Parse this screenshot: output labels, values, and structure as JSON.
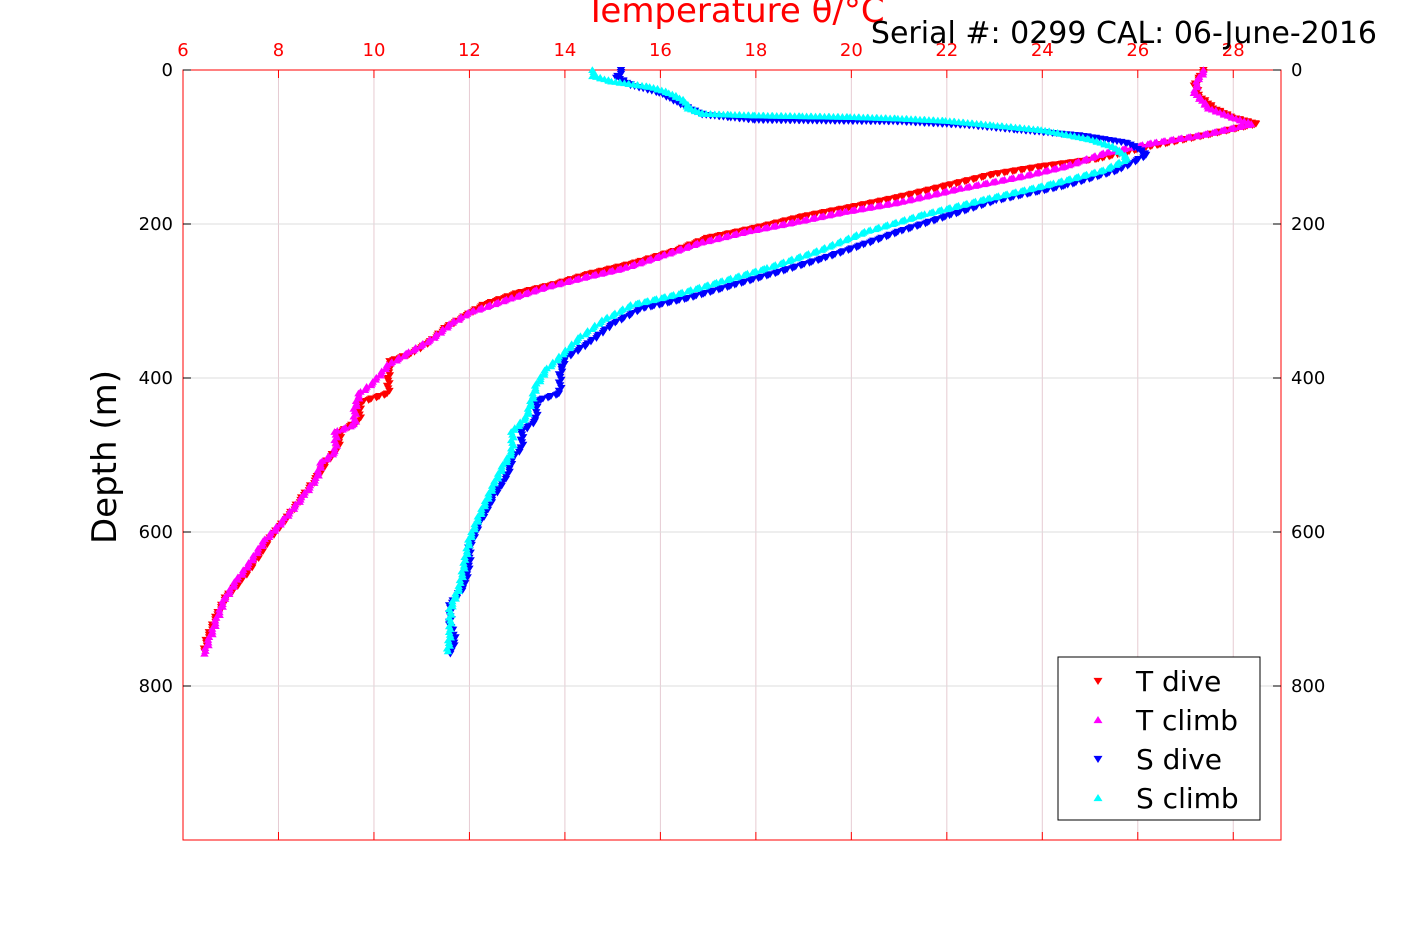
{
  "chart_data": {
    "type": "scatter",
    "title": "Temperature θ/°C",
    "subtitle": "Serial #: 0299 CAL: 06-June-2016",
    "xlabel": "Temperature θ/°C",
    "ylabel": "Depth (m)",
    "xlim": [
      6,
      29
    ],
    "ylim": [
      0,
      1000
    ],
    "y_reversed": true,
    "x_ticks": [
      6,
      8,
      10,
      12,
      14,
      16,
      18,
      20,
      22,
      24,
      26,
      28
    ],
    "y_ticks": [
      0,
      200,
      400,
      600,
      800
    ],
    "grid": true,
    "legend_position": "bottom-right",
    "series": [
      {
        "name": "T dive",
        "color": "#ff0000",
        "marker": "triangle-down",
        "points": [
          [
            27.4,
            0
          ],
          [
            27.3,
            10
          ],
          [
            27.2,
            20
          ],
          [
            27.3,
            35
          ],
          [
            27.6,
            50
          ],
          [
            28.0,
            62
          ],
          [
            28.5,
            70
          ],
          [
            27.4,
            85
          ],
          [
            26.2,
            100
          ],
          [
            25.2,
            115
          ],
          [
            24.0,
            125
          ],
          [
            23.0,
            135
          ],
          [
            22.0,
            150
          ],
          [
            21.0,
            165
          ],
          [
            20.0,
            178
          ],
          [
            19.0,
            190
          ],
          [
            18.0,
            205
          ],
          [
            17.0,
            218
          ],
          [
            16.3,
            235
          ],
          [
            15.5,
            250
          ],
          [
            14.5,
            265
          ],
          [
            13.8,
            278
          ],
          [
            13.0,
            290
          ],
          [
            12.3,
            305
          ],
          [
            11.9,
            320
          ],
          [
            11.5,
            335
          ],
          [
            11.2,
            352
          ],
          [
            10.8,
            368
          ],
          [
            10.35,
            378
          ],
          [
            10.3,
            400
          ],
          [
            10.3,
            420
          ],
          [
            9.7,
            432
          ],
          [
            9.7,
            455
          ],
          [
            9.3,
            470
          ],
          [
            9.25,
            490
          ],
          [
            9.0,
            510
          ],
          [
            8.8,
            530
          ],
          [
            8.5,
            555
          ],
          [
            8.2,
            580
          ],
          [
            7.8,
            610
          ],
          [
            7.5,
            640
          ],
          [
            7.2,
            665
          ],
          [
            6.9,
            685
          ],
          [
            6.7,
            710
          ],
          [
            6.5,
            740
          ],
          [
            6.45,
            755
          ]
        ]
      },
      {
        "name": "T climb",
        "color": "#ff00ff",
        "marker": "triangle-up",
        "points": [
          [
            27.4,
            0
          ],
          [
            27.25,
            15
          ],
          [
            27.2,
            30
          ],
          [
            27.5,
            50
          ],
          [
            28.0,
            62
          ],
          [
            28.4,
            70
          ],
          [
            27.3,
            85
          ],
          [
            26.3,
            95
          ],
          [
            25.3,
            108
          ],
          [
            24.5,
            125
          ],
          [
            23.6,
            138
          ],
          [
            22.2,
            155
          ],
          [
            21.0,
            172
          ],
          [
            19.8,
            185
          ],
          [
            18.8,
            198
          ],
          [
            17.8,
            210
          ],
          [
            16.8,
            225
          ],
          [
            16.0,
            242
          ],
          [
            15.2,
            258
          ],
          [
            14.5,
            268
          ],
          [
            13.6,
            282
          ],
          [
            12.8,
            298
          ],
          [
            12.0,
            315
          ],
          [
            11.6,
            330
          ],
          [
            11.2,
            350
          ],
          [
            10.7,
            368
          ],
          [
            10.3,
            383
          ],
          [
            10.0,
            405
          ],
          [
            9.7,
            420
          ],
          [
            9.6,
            440
          ],
          [
            9.6,
            460
          ],
          [
            9.2,
            470
          ],
          [
            9.2,
            495
          ],
          [
            8.9,
            510
          ],
          [
            8.8,
            530
          ],
          [
            8.5,
            555
          ],
          [
            8.1,
            585
          ],
          [
            7.7,
            612
          ],
          [
            7.4,
            640
          ],
          [
            7.1,
            665
          ],
          [
            6.85,
            690
          ],
          [
            6.7,
            715
          ],
          [
            6.55,
            740
          ],
          [
            6.45,
            758
          ]
        ]
      },
      {
        "name": "S dive",
        "color": "#0000ff",
        "marker": "triangle-down",
        "points": [
          [
            15.2,
            0
          ],
          [
            15.1,
            10
          ],
          [
            15.4,
            20
          ],
          [
            16.0,
            30
          ],
          [
            16.3,
            40
          ],
          [
            16.6,
            50
          ],
          [
            16.9,
            58
          ],
          [
            17.5,
            62
          ],
          [
            18.0,
            65
          ],
          [
            19.5,
            66
          ],
          [
            21.0,
            67
          ],
          [
            22.5,
            72
          ],
          [
            23.5,
            78
          ],
          [
            24.8,
            85
          ],
          [
            25.8,
            95
          ],
          [
            26.2,
            110
          ],
          [
            25.6,
            130
          ],
          [
            24.5,
            150
          ],
          [
            23.0,
            170
          ],
          [
            22.0,
            190
          ],
          [
            21.0,
            210
          ],
          [
            20.2,
            228
          ],
          [
            19.4,
            245
          ],
          [
            18.5,
            262
          ],
          [
            17.5,
            280
          ],
          [
            16.6,
            296
          ],
          [
            15.6,
            310
          ],
          [
            15.0,
            330
          ],
          [
            14.5,
            355
          ],
          [
            14.0,
            375
          ],
          [
            13.9,
            395
          ],
          [
            13.9,
            420
          ],
          [
            13.4,
            430
          ],
          [
            13.4,
            455
          ],
          [
            13.1,
            470
          ],
          [
            13.1,
            490
          ],
          [
            12.9,
            505
          ],
          [
            12.8,
            525
          ],
          [
            12.5,
            555
          ],
          [
            12.2,
            590
          ],
          [
            12.0,
            620
          ],
          [
            12.0,
            640
          ],
          [
            11.9,
            670
          ],
          [
            11.6,
            695
          ],
          [
            11.6,
            720
          ],
          [
            11.7,
            740
          ],
          [
            11.6,
            758
          ]
        ]
      },
      {
        "name": "S climb",
        "color": "#00ffff",
        "marker": "triangle-up",
        "points": [
          [
            14.6,
            0
          ],
          [
            14.6,
            8
          ],
          [
            15.0,
            15
          ],
          [
            15.8,
            22
          ],
          [
            16.2,
            30
          ],
          [
            16.5,
            40
          ],
          [
            16.6,
            50
          ],
          [
            16.9,
            57
          ],
          [
            17.5,
            58
          ],
          [
            18.0,
            59
          ],
          [
            19.0,
            60
          ],
          [
            20.0,
            61
          ],
          [
            21.0,
            63
          ],
          [
            22.0,
            66
          ],
          [
            23.0,
            72
          ],
          [
            24.0,
            78
          ],
          [
            25.0,
            90
          ],
          [
            25.5,
            100
          ],
          [
            25.8,
            115
          ],
          [
            25.3,
            130
          ],
          [
            24.2,
            148
          ],
          [
            22.8,
            168
          ],
          [
            21.5,
            188
          ],
          [
            20.3,
            210
          ],
          [
            19.3,
            235
          ],
          [
            18.2,
            258
          ],
          [
            17.2,
            276
          ],
          [
            16.3,
            292
          ],
          [
            15.4,
            305
          ],
          [
            14.8,
            325
          ],
          [
            14.3,
            348
          ],
          [
            13.9,
            372
          ],
          [
            13.6,
            390
          ],
          [
            13.4,
            410
          ],
          [
            13.3,
            430
          ],
          [
            13.2,
            450
          ],
          [
            12.9,
            470
          ],
          [
            12.9,
            495
          ],
          [
            12.7,
            515
          ],
          [
            12.5,
            540
          ],
          [
            12.2,
            580
          ],
          [
            12.0,
            610
          ],
          [
            11.9,
            640
          ],
          [
            11.8,
            670
          ],
          [
            11.6,
            700
          ],
          [
            11.6,
            730
          ],
          [
            11.55,
            755
          ]
        ]
      }
    ]
  }
}
